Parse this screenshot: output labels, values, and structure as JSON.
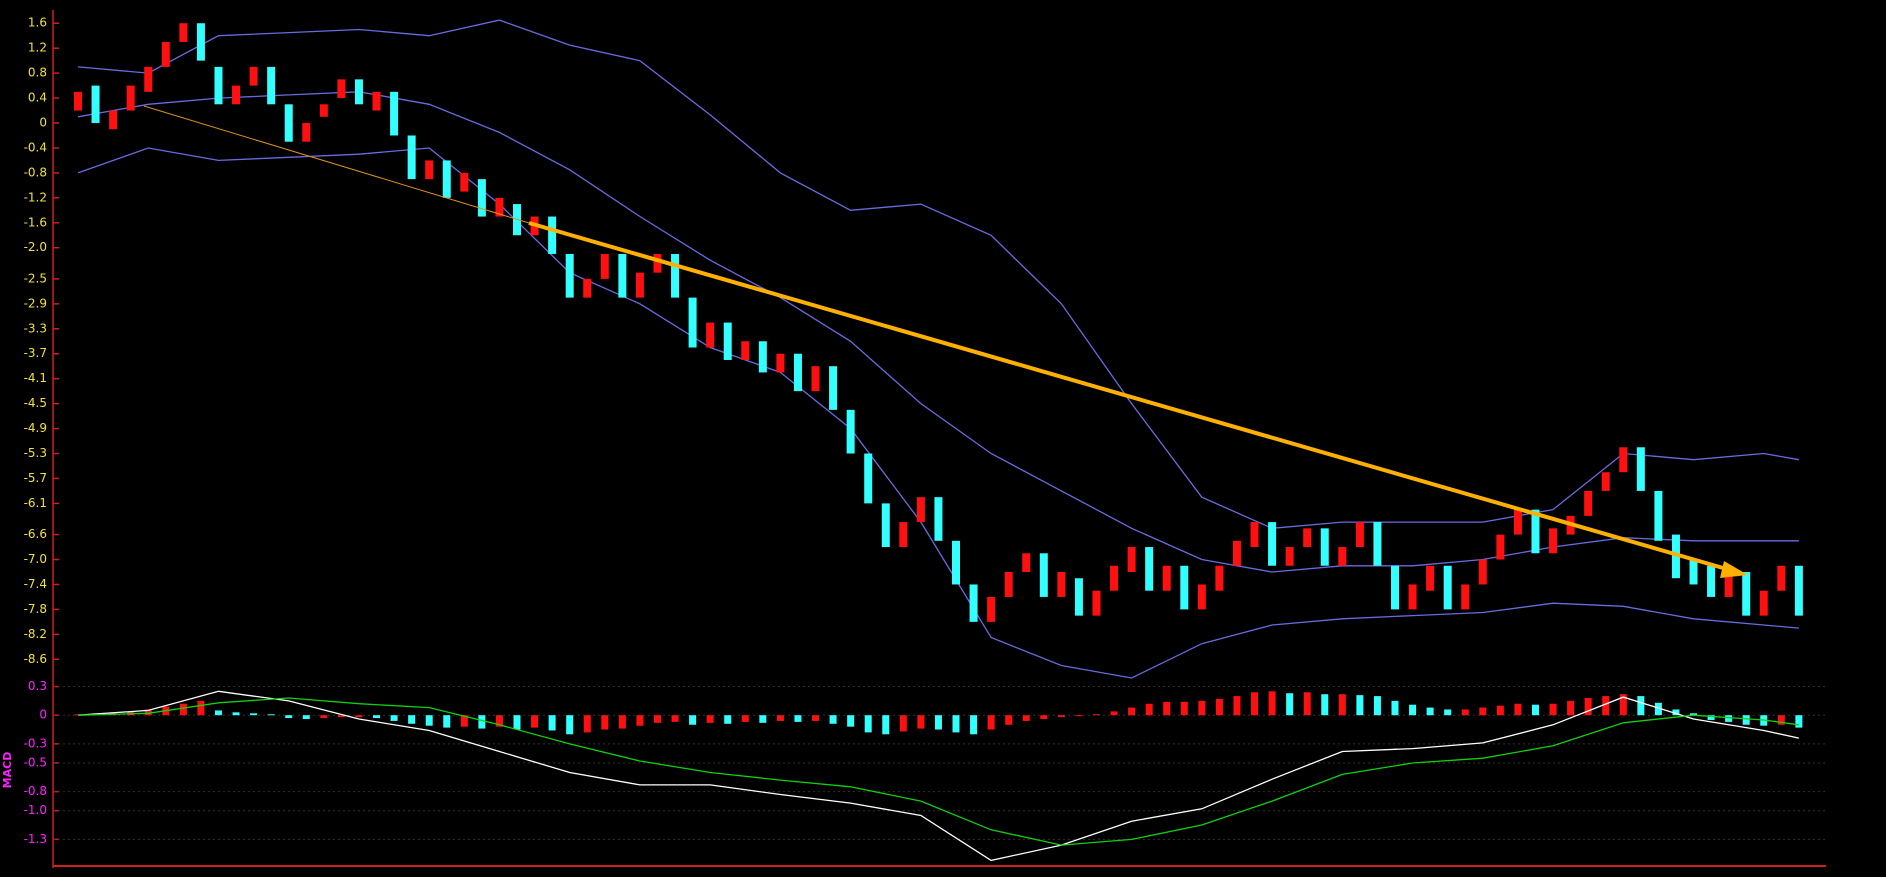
{
  "chart_data": [
    {
      "type": "candlestick",
      "open": [
        0.2,
        0.6,
        -0.1,
        0.2,
        0.5,
        0.9,
        1.3,
        1.6,
        0.9,
        0.3,
        0.6,
        0.9,
        0.3,
        -0.3,
        0.1,
        0.4,
        0.7,
        0.2,
        0.5,
        -0.2,
        -0.9,
        -0.6,
        -1.1,
        -0.9,
        -1.5,
        -1.3,
        -1.8,
        -1.5,
        -2.1,
        -2.8,
        -2.5,
        -2.1,
        -2.8,
        -2.4,
        -2.1,
        -2.8,
        -3.6,
        -3.2,
        -3.8,
        -3.5,
        -4.0,
        -3.7,
        -4.3,
        -3.9,
        -4.6,
        -5.3,
        -6.1,
        -6.8,
        -6.4,
        -6.0,
        -6.7,
        -7.4,
        -8.0,
        -7.6,
        -7.2,
        -6.9,
        -7.6,
        -7.3,
        -7.9,
        -7.5,
        -7.2,
        -6.8,
        -7.5,
        -7.1,
        -7.8,
        -7.5,
        -7.1,
        -6.8,
        -6.4,
        -7.1,
        -6.8,
        -6.5,
        -7.1,
        -6.8,
        -6.4,
        -7.1,
        -7.8,
        -7.5,
        -7.1,
        -7.8,
        -7.4,
        -7.0,
        -6.6,
        -6.2,
        -6.9,
        -6.6,
        -6.3,
        -5.9,
        -5.6,
        -5.2,
        -5.9,
        -6.6,
        -7.0,
        -7.1,
        -7.6,
        -7.2,
        -7.9,
        -7.5,
        -7.1
      ],
      "close": [
        0.5,
        0.0,
        0.2,
        0.6,
        0.9,
        1.3,
        1.6,
        1.0,
        0.3,
        0.6,
        0.9,
        0.3,
        -0.3,
        0.0,
        0.3,
        0.7,
        0.3,
        0.5,
        -0.2,
        -0.9,
        -0.6,
        -1.2,
        -0.8,
        -1.5,
        -1.2,
        -1.8,
        -1.5,
        -2.1,
        -2.8,
        -2.5,
        -2.1,
        -2.8,
        -2.4,
        -2.1,
        -2.8,
        -3.6,
        -3.2,
        -3.8,
        -3.5,
        -4.0,
        -3.7,
        -4.3,
        -3.9,
        -4.6,
        -5.3,
        -6.1,
        -6.8,
        -6.4,
        -6.0,
        -6.7,
        -7.4,
        -8.0,
        -7.6,
        -7.2,
        -6.9,
        -7.6,
        -7.2,
        -7.9,
        -7.5,
        -7.1,
        -6.8,
        -7.5,
        -7.1,
        -7.8,
        -7.4,
        -7.1,
        -6.7,
        -6.4,
        -7.1,
        -6.8,
        -6.5,
        -7.1,
        -6.8,
        -6.4,
        -7.1,
        -7.8,
        -7.4,
        -7.1,
        -7.8,
        -7.4,
        -7.0,
        -6.6,
        -6.2,
        -6.9,
        -6.5,
        -6.3,
        -5.9,
        -5.6,
        -5.2,
        -5.9,
        -6.7,
        -7.3,
        -7.4,
        -7.6,
        -7.2,
        -7.9,
        -7.5,
        -7.1,
        -7.9
      ],
      "up_color": "#ff1010",
      "down_color": "#33ffff",
      "series": [
        {
          "color": "#6a6ae0",
          "x": [
            0,
            4,
            8,
            12,
            16,
            20,
            24,
            28,
            32,
            36,
            40,
            44,
            48,
            52,
            56,
            60,
            64,
            68,
            72,
            76,
            80,
            84,
            88,
            92,
            96,
            98
          ],
          "values": [
            0.9,
            0.8,
            1.4,
            1.45,
            1.5,
            1.4,
            1.65,
            1.25,
            1.0,
            0.13,
            -0.8,
            -1.4,
            -1.3,
            -1.8,
            -2.9,
            -4.5,
            -6.0,
            -6.5,
            -6.4,
            -6.4,
            -6.4,
            -6.2,
            -5.3,
            -5.4,
            -5.3,
            -5.4
          ]
        },
        {
          "color": "#6a6ae0",
          "x": [
            0,
            4,
            8,
            12,
            16,
            20,
            24,
            28,
            32,
            36,
            40,
            44,
            48,
            52,
            56,
            60,
            64,
            68,
            72,
            76,
            80,
            84,
            88,
            92,
            96,
            98
          ],
          "values": [
            0.1,
            0.3,
            0.4,
            0.45,
            0.5,
            0.3,
            -0.15,
            -0.75,
            -1.5,
            -2.2,
            -2.8,
            -3.5,
            -4.5,
            -5.3,
            -5.9,
            -6.5,
            -7.0,
            -7.2,
            -7.1,
            -7.1,
            -7.0,
            -6.8,
            -6.65,
            -6.7,
            -6.7,
            -6.7
          ]
        },
        {
          "color": "#6a6ae0",
          "x": [
            0,
            4,
            8,
            12,
            16,
            20,
            24,
            28,
            32,
            36,
            40,
            44,
            48,
            52,
            56,
            60,
            64,
            68,
            72,
            76,
            80,
            84,
            88,
            92,
            96,
            98
          ],
          "values": [
            -0.8,
            -0.4,
            -0.6,
            -0.55,
            -0.5,
            -0.4,
            -1.3,
            -2.4,
            -2.9,
            -3.6,
            -4.0,
            -4.9,
            -6.4,
            -8.25,
            -8.7,
            -8.9,
            -8.35,
            -8.05,
            -7.95,
            -7.9,
            -7.85,
            -7.7,
            -7.75,
            -7.95,
            -8.05,
            -8.1
          ]
        }
      ],
      "xlim": [
        0,
        98
      ],
      "ylim": [
        -8.9,
        1.7
      ],
      "yticks": [
        1.6,
        1.2,
        0.8,
        0.4,
        0,
        -0.4,
        -0.8,
        -1.2,
        -1.6,
        {
          "value": -2.0,
          "label": "-2.0"
        },
        -2.5,
        -2.9,
        -3.3,
        -3.7,
        -4.1,
        -4.5,
        -4.9,
        -5.3,
        -5.7,
        -6.1,
        -6.6,
        {
          "value": -7.0,
          "label": "-7.0"
        },
        -7.4,
        -7.8,
        -8.2,
        -8.6
      ]
    },
    {
      "type": "macd",
      "label": "MACD",
      "values": [
        0.01,
        0.02,
        0.02,
        0.04,
        0.06,
        0.09,
        0.12,
        0.15,
        0.05,
        0.03,
        0.02,
        0.01,
        -0.03,
        -0.04,
        -0.03,
        -0.02,
        -0.02,
        -0.03,
        -0.06,
        -0.09,
        -0.11,
        -0.13,
        -0.12,
        -0.14,
        -0.12,
        -0.15,
        -0.13,
        -0.16,
        -0.2,
        -0.18,
        -0.15,
        -0.14,
        -0.11,
        -0.08,
        -0.07,
        -0.1,
        -0.08,
        -0.09,
        -0.07,
        -0.08,
        -0.06,
        -0.07,
        -0.06,
        -0.09,
        -0.12,
        -0.18,
        -0.2,
        -0.17,
        -0.14,
        -0.15,
        -0.18,
        -0.2,
        -0.15,
        -0.1,
        -0.06,
        -0.04,
        -0.02,
        -0.01,
        0.01,
        0.04,
        0.08,
        0.12,
        0.14,
        0.14,
        0.15,
        0.17,
        0.2,
        0.24,
        0.25,
        0.23,
        0.24,
        0.22,
        0.22,
        0.21,
        0.2,
        0.15,
        0.11,
        0.08,
        0.06,
        0.06,
        0.08,
        0.1,
        0.12,
        0.11,
        0.12,
        0.15,
        0.18,
        0.2,
        0.22,
        0.2,
        0.13,
        0.06,
        0.02,
        -0.05,
        -0.07,
        -0.1,
        -0.11,
        -0.1,
        -0.13
      ],
      "up_color": "#ff1010",
      "down_color": "#33ffff",
      "series": [
        {
          "color": "#ffffff",
          "x": [
            0,
            4,
            8,
            12,
            16,
            20,
            24,
            28,
            32,
            36,
            40,
            44,
            48,
            52,
            56,
            60,
            64,
            68,
            72,
            76,
            80,
            84,
            88,
            92,
            96,
            98
          ],
          "values": [
            0,
            0.05,
            0.25,
            0.15,
            -0.04,
            -0.16,
            -0.38,
            -0.6,
            -0.73,
            -0.73,
            -0.83,
            -0.92,
            -1.05,
            -1.52,
            -1.36,
            -1.11,
            -0.98,
            -0.67,
            -0.38,
            -0.35,
            -0.29,
            -0.1,
            0.19,
            -0.04,
            -0.16,
            -0.24
          ]
        },
        {
          "color": "#10d010",
          "x": [
            0,
            4,
            8,
            12,
            16,
            20,
            24,
            28,
            32,
            36,
            40,
            44,
            48,
            52,
            56,
            60,
            64,
            68,
            72,
            76,
            80,
            84,
            88,
            92,
            96,
            98
          ],
          "values": [
            0,
            0.02,
            0.13,
            0.18,
            0.12,
            0.08,
            -0.1,
            -0.3,
            -0.48,
            -0.6,
            -0.68,
            -0.75,
            -0.9,
            -1.2,
            -1.36,
            -1.3,
            -1.15,
            -0.9,
            -0.62,
            -0.5,
            -0.45,
            -0.32,
            -0.08,
            0.0,
            -0.05,
            -0.1
          ]
        }
      ],
      "xlim": [
        0,
        98
      ],
      "ylim": [
        -1.6,
        0.4
      ],
      "yticks": [
        0.3,
        0,
        -0.3,
        -0.5,
        -0.8,
        {
          "value": -1.0,
          "label": "-1.0"
        },
        -1.3
      ],
      "grid": true
    }
  ]
}
